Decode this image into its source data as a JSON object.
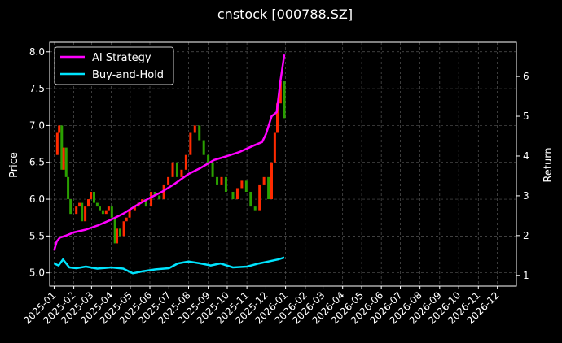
{
  "chart_data": {
    "type": "line",
    "title": "cnstock [000788.SZ]",
    "ylabel_left": "Price",
    "ylabel_right": "Return",
    "xlim": [
      "2024-12-25",
      "2026-12-31"
    ],
    "ylim_left": [
      4.82,
      8.13
    ],
    "ylim_right": [
      0.73,
      6.86
    ],
    "grid": true,
    "legend_position": "top-left",
    "x_ticks": [
      "2025-01",
      "2025-02",
      "2025-03",
      "2025-04",
      "2025-05",
      "2025-06",
      "2025-07",
      "2025-08",
      "2025-09",
      "2025-10",
      "2025-11",
      "2025-12",
      "2026-01",
      "2026-02",
      "2026-03",
      "2026-04",
      "2026-05",
      "2026-06",
      "2026-07",
      "2026-08",
      "2026-09",
      "2026-10",
      "2026-11",
      "2026-12"
    ],
    "y_ticks_left": [
      5.0,
      5.5,
      6.0,
      6.5,
      7.0,
      7.5,
      8.0
    ],
    "y_ticks_right": [
      1,
      2,
      3,
      4,
      5,
      6
    ],
    "colors": {
      "ai": "#ff00ff",
      "bh": "#00e5ff",
      "up": "#ff2a00",
      "down": "#2aa000",
      "grid": "#555555"
    },
    "price_series": {
      "dates": [
        "2025-01-02",
        "2025-01-06",
        "2025-01-09",
        "2025-01-13",
        "2025-01-16",
        "2025-01-20",
        "2025-01-23",
        "2025-01-27",
        "2025-02-05",
        "2025-02-10",
        "2025-02-14",
        "2025-02-19",
        "2025-02-24",
        "2025-02-28",
        "2025-03-05",
        "2025-03-10",
        "2025-03-14",
        "2025-03-19",
        "2025-03-24",
        "2025-03-28",
        "2025-04-02",
        "2025-04-07",
        "2025-04-10",
        "2025-04-15",
        "2025-04-21",
        "2025-04-25",
        "2025-04-30",
        "2025-05-08",
        "2025-05-14",
        "2025-05-20",
        "2025-05-26",
        "2025-06-03",
        "2025-06-09",
        "2025-06-16",
        "2025-06-23",
        "2025-06-30",
        "2025-07-07",
        "2025-07-14",
        "2025-07-21",
        "2025-07-28",
        "2025-08-04",
        "2025-08-11",
        "2025-08-18",
        "2025-08-25",
        "2025-09-01",
        "2025-09-08",
        "2025-09-15",
        "2025-09-22",
        "2025-09-29",
        "2025-10-10",
        "2025-10-17",
        "2025-10-24",
        "2025-10-31",
        "2025-11-07",
        "2025-11-14",
        "2025-11-21",
        "2025-11-28",
        "2025-12-05",
        "2025-12-10",
        "2025-12-15",
        "2025-12-19",
        "2025-12-24",
        "2025-12-30"
      ],
      "close": [
        6.6,
        6.9,
        7.0,
        6.4,
        6.7,
        6.3,
        6.0,
        5.8,
        5.9,
        5.95,
        5.7,
        5.9,
        6.0,
        6.1,
        5.95,
        5.9,
        5.85,
        5.8,
        5.85,
        5.9,
        5.75,
        5.4,
        5.6,
        5.5,
        5.7,
        5.75,
        5.85,
        5.9,
        5.95,
        6.0,
        5.9,
        6.1,
        6.05,
        6.0,
        6.2,
        6.3,
        6.5,
        6.3,
        6.4,
        6.6,
        6.9,
        7.0,
        6.8,
        6.6,
        6.5,
        6.3,
        6.2,
        6.3,
        6.1,
        6.0,
        6.15,
        6.25,
        6.1,
        5.9,
        5.85,
        6.2,
        6.3,
        6.0,
        6.5,
        6.9,
        7.3,
        7.6,
        7.1
      ]
    },
    "series": [
      {
        "name": "AI Strategy",
        "x": [
          "2025-01-01",
          "2025-01-05",
          "2025-01-10",
          "2025-01-20",
          "2025-02-01",
          "2025-02-20",
          "2025-03-10",
          "2025-04-01",
          "2025-04-20",
          "2025-05-10",
          "2025-06-01",
          "2025-06-20",
          "2025-07-10",
          "2025-08-01",
          "2025-08-20",
          "2025-09-10",
          "2025-10-01",
          "2025-10-20",
          "2025-11-10",
          "2025-11-25",
          "2025-12-01",
          "2025-12-10",
          "2025-12-18",
          "2025-12-24",
          "2025-12-30"
        ],
        "y": [
          1.62,
          1.85,
          1.95,
          2.0,
          2.08,
          2.15,
          2.25,
          2.4,
          2.55,
          2.75,
          2.95,
          3.1,
          3.3,
          3.55,
          3.7,
          3.9,
          4.0,
          4.1,
          4.25,
          4.35,
          4.55,
          5.0,
          5.1,
          5.9,
          6.55
        ]
      },
      {
        "name": "Buy-and-Hold",
        "x": [
          "2025-01-01",
          "2025-01-08",
          "2025-01-15",
          "2025-01-25",
          "2025-02-05",
          "2025-02-20",
          "2025-03-10",
          "2025-04-01",
          "2025-04-20",
          "2025-05-05",
          "2025-05-20",
          "2025-06-10",
          "2025-07-01",
          "2025-07-15",
          "2025-08-01",
          "2025-08-20",
          "2025-09-05",
          "2025-09-20",
          "2025-10-10",
          "2025-11-01",
          "2025-11-20",
          "2025-12-05",
          "2025-12-20",
          "2025-12-30"
        ],
        "y": [
          1.3,
          1.25,
          1.4,
          1.2,
          1.18,
          1.22,
          1.17,
          1.2,
          1.17,
          1.05,
          1.1,
          1.15,
          1.18,
          1.3,
          1.35,
          1.3,
          1.25,
          1.3,
          1.2,
          1.22,
          1.3,
          1.35,
          1.4,
          1.45
        ]
      }
    ]
  }
}
